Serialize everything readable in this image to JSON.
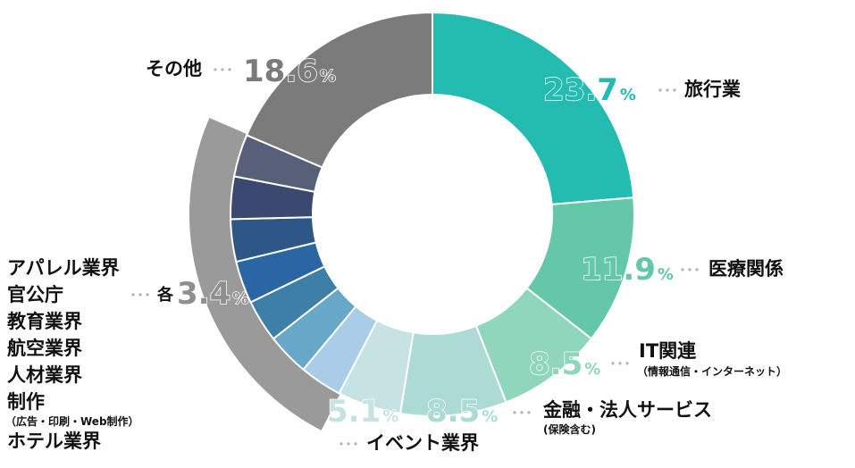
{
  "chart_data": {
    "type": "donut",
    "title": "",
    "unit": "%",
    "segments": [
      {
        "label": "旅行業",
        "value": 23.7,
        "color": "#24bcb0"
      },
      {
        "label": "医療関係",
        "value": 11.9,
        "color": "#64c8a8"
      },
      {
        "label": "IT関連",
        "sublabel": "（情報通信・インターネット）",
        "value": 8.5,
        "color": "#8fd6bd"
      },
      {
        "label": "金融・法人サービス",
        "sublabel": "(保険含む)",
        "value": 8.5,
        "color": "#acdbd5"
      },
      {
        "label": "イベント業界",
        "value": 5.1,
        "color": "#c6e2e3"
      },
      {
        "label": "ホテル業界",
        "value": 3.4,
        "color": "#a9cde6",
        "group": "each"
      },
      {
        "label": "制作",
        "sublabel": "（広告・印刷・Web制作）",
        "value": 3.4,
        "color": "#67a7c8",
        "group": "each"
      },
      {
        "label": "人材業界",
        "value": 3.4,
        "color": "#3e7fa8",
        "group": "each"
      },
      {
        "label": "航空業界",
        "value": 3.4,
        "color": "#2b66a4",
        "group": "each"
      },
      {
        "label": "教育業界",
        "value": 3.4,
        "color": "#2e5788",
        "group": "each"
      },
      {
        "label": "官公庁",
        "value": 3.4,
        "color": "#3a4970",
        "group": "each"
      },
      {
        "label": "アパレル業界",
        "value": 3.4,
        "color": "#585f78",
        "group": "each"
      },
      {
        "label": "その他",
        "value": 18.6,
        "color": "#7b7b7b"
      }
    ],
    "group_label": {
      "prefix": "各",
      "value": 3.4
    },
    "group_band_color": "#9a9a9a",
    "dots": "･･･"
  }
}
